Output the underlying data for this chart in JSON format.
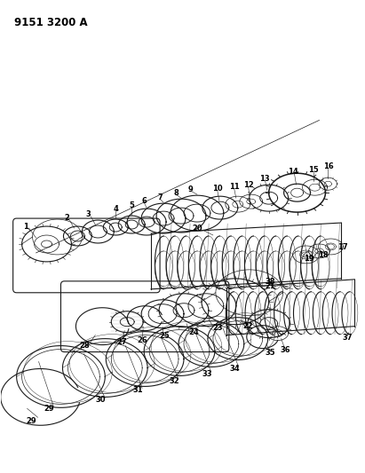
{
  "title": "9151 3200 A",
  "bg_color": "#ffffff",
  "line_color": "#1a1a1a",
  "fig_width": 4.11,
  "fig_height": 5.33,
  "dpi": 100
}
